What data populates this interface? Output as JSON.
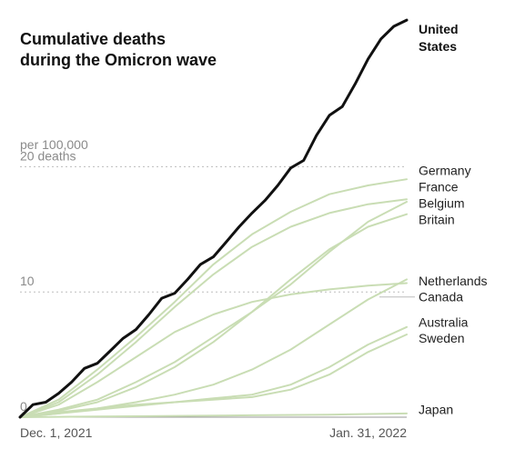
{
  "chart_data": {
    "type": "line",
    "title": [
      "Cumulative deaths",
      "during the Omicron wave"
    ],
    "y_unit_label": [
      "20 deaths",
      "per 100,000"
    ],
    "ylim": [
      0,
      32
    ],
    "yticks": [
      {
        "value": 0,
        "label": "0"
      },
      {
        "value": 10,
        "label": "10"
      },
      {
        "value": 20,
        "label": "20 deaths"
      }
    ],
    "x_start_label": "Dec. 1, 2021",
    "x_end_label": "Jan. 31, 2022",
    "x_steps": 60,
    "grid": true,
    "colors": {
      "highlight": "#111111",
      "other": "#c9ddb4",
      "grid": "#bdbdbd",
      "label_line": "#bbbbbb"
    },
    "series": [
      {
        "name": "United States",
        "highlight": true,
        "points": [
          [
            0,
            0
          ],
          [
            2,
            1.0
          ],
          [
            4,
            1.2
          ],
          [
            6,
            1.9
          ],
          [
            8,
            2.8
          ],
          [
            10,
            3.9
          ],
          [
            12,
            4.3
          ],
          [
            14,
            5.3
          ],
          [
            16,
            6.3
          ],
          [
            18,
            7.0
          ],
          [
            20,
            8.2
          ],
          [
            22,
            9.5
          ],
          [
            24,
            9.9
          ],
          [
            26,
            11.0
          ],
          [
            28,
            12.2
          ],
          [
            30,
            12.8
          ],
          [
            32,
            14.0
          ],
          [
            34,
            15.2
          ],
          [
            36,
            16.3
          ],
          [
            38,
            17.3
          ],
          [
            40,
            18.5
          ],
          [
            42,
            19.9
          ],
          [
            44,
            20.5
          ],
          [
            46,
            22.5
          ],
          [
            48,
            24.1
          ],
          [
            50,
            24.8
          ],
          [
            52,
            26.6
          ],
          [
            54,
            28.6
          ],
          [
            56,
            30.2
          ],
          [
            58,
            31.2
          ],
          [
            60,
            31.7
          ]
        ]
      },
      {
        "name": "Germany",
        "highlight": false,
        "points": [
          [
            0,
            0
          ],
          [
            6,
            1.4
          ],
          [
            12,
            3.8
          ],
          [
            18,
            6.4
          ],
          [
            24,
            9.2
          ],
          [
            30,
            12.2
          ],
          [
            36,
            14.6
          ],
          [
            42,
            16.4
          ],
          [
            48,
            17.8
          ],
          [
            54,
            18.5
          ],
          [
            60,
            19.0
          ]
        ]
      },
      {
        "name": "France",
        "highlight": false,
        "points": [
          [
            0,
            0
          ],
          [
            6,
            1.2
          ],
          [
            12,
            3.4
          ],
          [
            18,
            6.0
          ],
          [
            24,
            8.8
          ],
          [
            30,
            11.4
          ],
          [
            36,
            13.6
          ],
          [
            42,
            15.2
          ],
          [
            48,
            16.3
          ],
          [
            54,
            17.0
          ],
          [
            60,
            17.4
          ]
        ]
      },
      {
        "name": "Belgium",
        "highlight": false,
        "points": [
          [
            0,
            0
          ],
          [
            6,
            0.6
          ],
          [
            12,
            1.4
          ],
          [
            18,
            2.8
          ],
          [
            24,
            4.4
          ],
          [
            30,
            6.4
          ],
          [
            36,
            8.4
          ],
          [
            42,
            10.6
          ],
          [
            48,
            13.2
          ],
          [
            54,
            15.6
          ],
          [
            60,
            17.2
          ]
        ]
      },
      {
        "name": "Britain",
        "highlight": false,
        "points": [
          [
            0,
            0
          ],
          [
            6,
            0.5
          ],
          [
            12,
            1.2
          ],
          [
            18,
            2.4
          ],
          [
            24,
            4.0
          ],
          [
            30,
            6.0
          ],
          [
            36,
            8.4
          ],
          [
            42,
            11.0
          ],
          [
            48,
            13.4
          ],
          [
            54,
            15.2
          ],
          [
            60,
            16.2
          ]
        ]
      },
      {
        "name": "Netherlands",
        "highlight": false,
        "points": [
          [
            0,
            0
          ],
          [
            6,
            1.0
          ],
          [
            12,
            2.8
          ],
          [
            18,
            4.8
          ],
          [
            24,
            6.8
          ],
          [
            30,
            8.2
          ],
          [
            36,
            9.2
          ],
          [
            42,
            9.8
          ],
          [
            48,
            10.2
          ],
          [
            54,
            10.5
          ],
          [
            60,
            10.7
          ]
        ]
      },
      {
        "name": "Canada",
        "highlight": false,
        "points": [
          [
            0,
            0
          ],
          [
            6,
            0.3
          ],
          [
            12,
            0.7
          ],
          [
            18,
            1.2
          ],
          [
            24,
            1.8
          ],
          [
            30,
            2.6
          ],
          [
            36,
            3.8
          ],
          [
            42,
            5.4
          ],
          [
            48,
            7.4
          ],
          [
            54,
            9.4
          ],
          [
            60,
            11.0
          ]
        ]
      },
      {
        "name": "Australia",
        "highlight": false,
        "points": [
          [
            0,
            0
          ],
          [
            6,
            0.3
          ],
          [
            12,
            0.6
          ],
          [
            18,
            0.9
          ],
          [
            24,
            1.2
          ],
          [
            30,
            1.5
          ],
          [
            36,
            1.8
          ],
          [
            42,
            2.6
          ],
          [
            48,
            4.0
          ],
          [
            54,
            5.8
          ],
          [
            60,
            7.2
          ]
        ]
      },
      {
        "name": "Sweden",
        "highlight": false,
        "points": [
          [
            0,
            0
          ],
          [
            6,
            0.4
          ],
          [
            12,
            0.7
          ],
          [
            18,
            1.0
          ],
          [
            24,
            1.2
          ],
          [
            30,
            1.4
          ],
          [
            36,
            1.6
          ],
          [
            42,
            2.2
          ],
          [
            48,
            3.4
          ],
          [
            54,
            5.2
          ],
          [
            60,
            6.6
          ]
        ]
      },
      {
        "name": "Japan",
        "highlight": false,
        "points": [
          [
            0,
            0
          ],
          [
            12,
            0.05
          ],
          [
            24,
            0.1
          ],
          [
            36,
            0.15
          ],
          [
            48,
            0.2
          ],
          [
            60,
            0.3
          ]
        ]
      }
    ],
    "labels": [
      {
        "lines": [
          "United",
          "States"
        ],
        "series": "United States",
        "value": 31.0,
        "bold": true
      },
      {
        "lines": [
          "Germany"
        ],
        "series": "Germany",
        "value": 19.7
      },
      {
        "lines": [
          "France"
        ],
        "series": "France",
        "value": 18.4
      },
      {
        "lines": [
          "Belgium"
        ],
        "series": "Belgium",
        "value": 17.1
      },
      {
        "lines": [
          "Britain"
        ],
        "series": "Britain",
        "value": 15.8
      },
      {
        "lines": [
          "Netherlands"
        ],
        "series": "Netherlands",
        "value": 10.9
      },
      {
        "lines": [
          "Canada"
        ],
        "series": "Canada",
        "value": 9.6,
        "leader_from": 10.0
      },
      {
        "lines": [
          "Australia"
        ],
        "series": "Australia",
        "value": 7.6
      },
      {
        "lines": [
          "Sweden"
        ],
        "series": "Sweden",
        "value": 6.3
      },
      {
        "lines": [
          "Japan"
        ],
        "series": "Japan",
        "value": 0.6
      }
    ]
  }
}
